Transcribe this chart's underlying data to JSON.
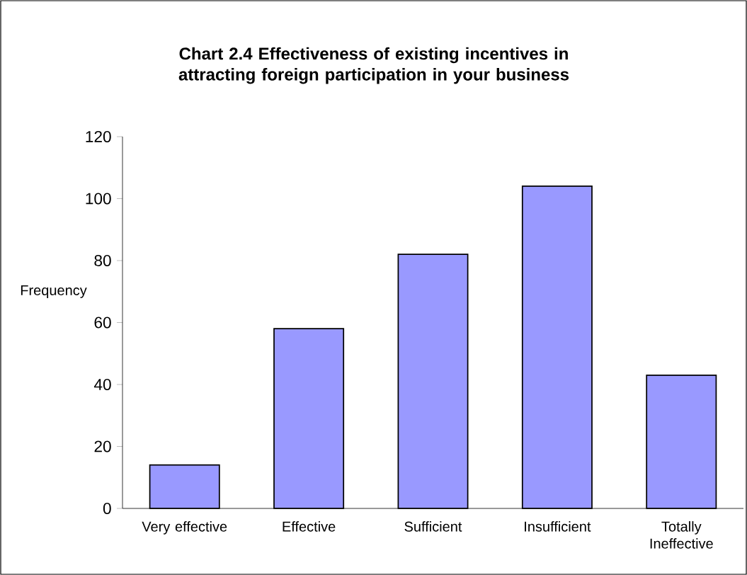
{
  "chart_data": {
    "type": "bar",
    "title": "Chart 2.4 Effectiveness of existing incentives in attracting foreign participation in your business",
    "ylabel": "Frequency",
    "categories": [
      "Very effective",
      "Effective",
      "Sufficient",
      "Insufficient",
      "Totally Ineffective"
    ],
    "values": [
      14,
      58,
      82,
      104,
      43
    ],
    "color": "#9999ff",
    "ylim": [
      0,
      120
    ],
    "yticks": [
      0,
      20,
      40,
      60,
      80,
      100,
      120
    ]
  }
}
